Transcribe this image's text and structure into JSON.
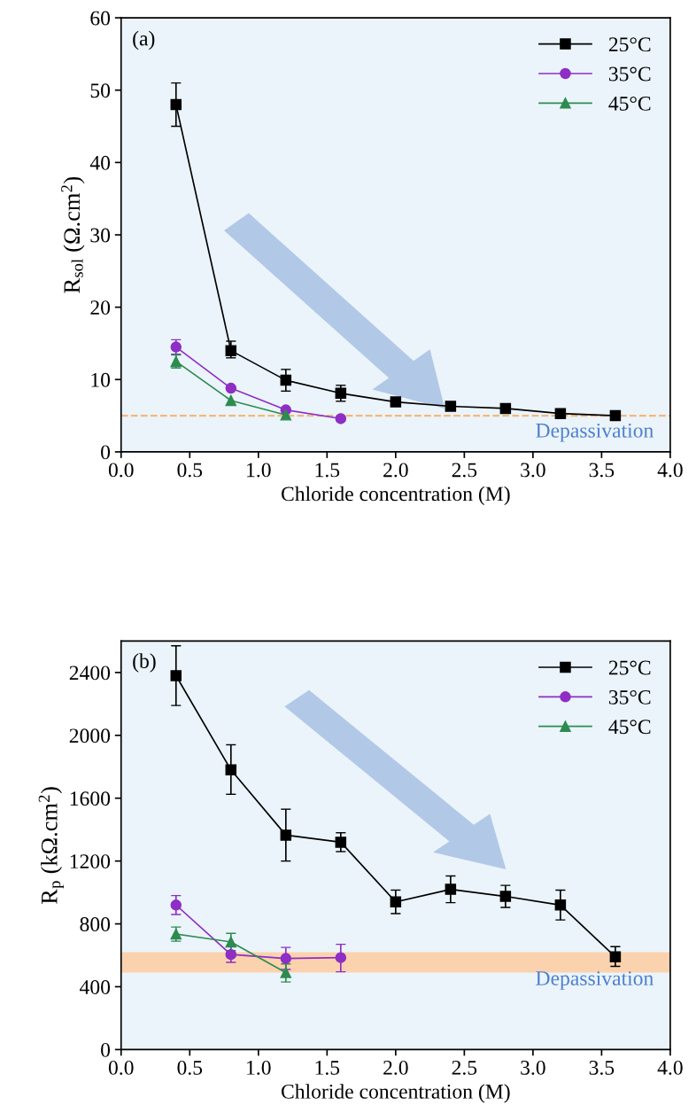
{
  "chart_data": [
    {
      "type": "line",
      "title": "(a)",
      "xlabel": "Chloride concentration (M)",
      "ylabel": "R$_{sol}$ (Ω.cm$^{2}$)",
      "xlim": [
        0.0,
        4.0
      ],
      "xticks": [
        {
          "value": 0,
          "label": "0.0"
        },
        {
          "value": 0.5,
          "label": "0.5"
        },
        {
          "value": 1,
          "label": "1.0"
        },
        {
          "value": 1.5,
          "label": "1.5"
        },
        {
          "value": 2,
          "label": "2.0"
        },
        {
          "value": 2.5,
          "label": "2.5"
        },
        {
          "value": 3,
          "label": "3.0"
        },
        {
          "value": 3.5,
          "label": "3.5"
        },
        {
          "value": 4,
          "label": "4.0"
        }
      ],
      "ylim": [
        0,
        60
      ],
      "yticks": [
        0,
        10,
        20,
        30,
        40,
        50,
        60
      ],
      "legend": "top right",
      "grid": false,
      "series": [
        {
          "name": "25°C",
          "color": "#000000",
          "marker": "square",
          "x": [
            0.4,
            0.8,
            1.2,
            1.6,
            2.0,
            2.4,
            2.8,
            3.2,
            3.6
          ],
          "values": [
            48,
            14,
            9.9,
            8.1,
            6.9,
            6.3,
            6.0,
            5.3,
            5.0
          ],
          "errors": [
            [
              45,
              51
            ],
            [
              13,
              15.3
            ],
            [
              8.4,
              11.4
            ],
            [
              7,
              9.2
            ],
            null,
            null,
            null,
            null,
            null
          ]
        },
        {
          "name": "35°C",
          "color": "#8e2ec4",
          "marker": "circle",
          "x": [
            0.4,
            0.8,
            1.2,
            1.6
          ],
          "values": [
            14.5,
            8.8,
            5.8,
            4.6
          ],
          "errors": [
            [
              13.5,
              15.5
            ],
            null,
            null,
            null
          ]
        },
        {
          "name": "45°C",
          "color": "#2e8b50",
          "marker": "triangle",
          "x": [
            0.4,
            0.8,
            1.2
          ],
          "values": [
            12.5,
            7.1,
            5.1
          ],
          "errors": [
            [
              11.6,
              13.4
            ],
            null,
            null
          ]
        }
      ],
      "ref_lines": [
        {
          "axis": "y",
          "value": 5,
          "color": "#f5b77a",
          "line_style": "dashed"
        }
      ],
      "annotations": [
        "Depassivation"
      ]
    },
    {
      "type": "line",
      "title": "(b)",
      "xlabel": "Chloride concentration (M)",
      "ylabel": "R$_{p}$ (kΩ.cm$^{2}$)",
      "xlim": [
        0.0,
        4.0
      ],
      "xticks": [
        {
          "value": 0,
          "label": "0.0"
        },
        {
          "value": 0.5,
          "label": "0.5"
        },
        {
          "value": 1,
          "label": "1.0"
        },
        {
          "value": 1.5,
          "label": "1.5"
        },
        {
          "value": 2,
          "label": "2.0"
        },
        {
          "value": 2.5,
          "label": "2.5"
        },
        {
          "value": 3,
          "label": "3.0"
        },
        {
          "value": 3.5,
          "label": "3.5"
        },
        {
          "value": 4,
          "label": "4.0"
        }
      ],
      "ylim": [
        0,
        2600
      ],
      "yticks": [
        0,
        400,
        800,
        1200,
        1600,
        2000,
        2400
      ],
      "legend": "top right",
      "grid": false,
      "series": [
        {
          "name": "25°C",
          "color": "#000000",
          "marker": "square",
          "x": [
            0.4,
            0.8,
            1.2,
            1.6,
            2.0,
            2.4,
            2.8,
            3.2,
            3.6
          ],
          "values": [
            2380,
            1780,
            1365,
            1320,
            940,
            1020,
            975,
            920,
            590
          ],
          "errors": [
            [
              2190,
              2570
            ],
            [
              1625,
              1940
            ],
            [
              1200,
              1530
            ],
            [
              1260,
              1380
            ],
            [
              865,
              1015
            ],
            [
              935,
              1105
            ],
            [
              905,
              1045
            ],
            [
              825,
              1015
            ],
            [
              530,
              655
            ]
          ]
        },
        {
          "name": "35°C",
          "color": "#8e2ec4",
          "marker": "circle",
          "x": [
            0.4,
            0.8,
            1.2,
            1.6
          ],
          "values": [
            920,
            605,
            580,
            585
          ],
          "errors": [
            [
              860,
              980
            ],
            [
              555,
              655
            ],
            [
              510,
              650
            ],
            [
              495,
              670
            ]
          ]
        },
        {
          "name": "45°C",
          "color": "#2e8b50",
          "marker": "triangle",
          "x": [
            0.4,
            0.8,
            1.2
          ],
          "values": [
            735,
            685,
            490
          ],
          "errors": [
            [
              690,
              780
            ],
            [
              630,
              740
            ],
            [
              430,
              545
            ]
          ]
        }
      ],
      "bands": [
        {
          "axis": "y",
          "from": 490,
          "to": 620,
          "color": "#fbd2ae"
        }
      ],
      "annotations": [
        "Depassivation"
      ]
    }
  ]
}
